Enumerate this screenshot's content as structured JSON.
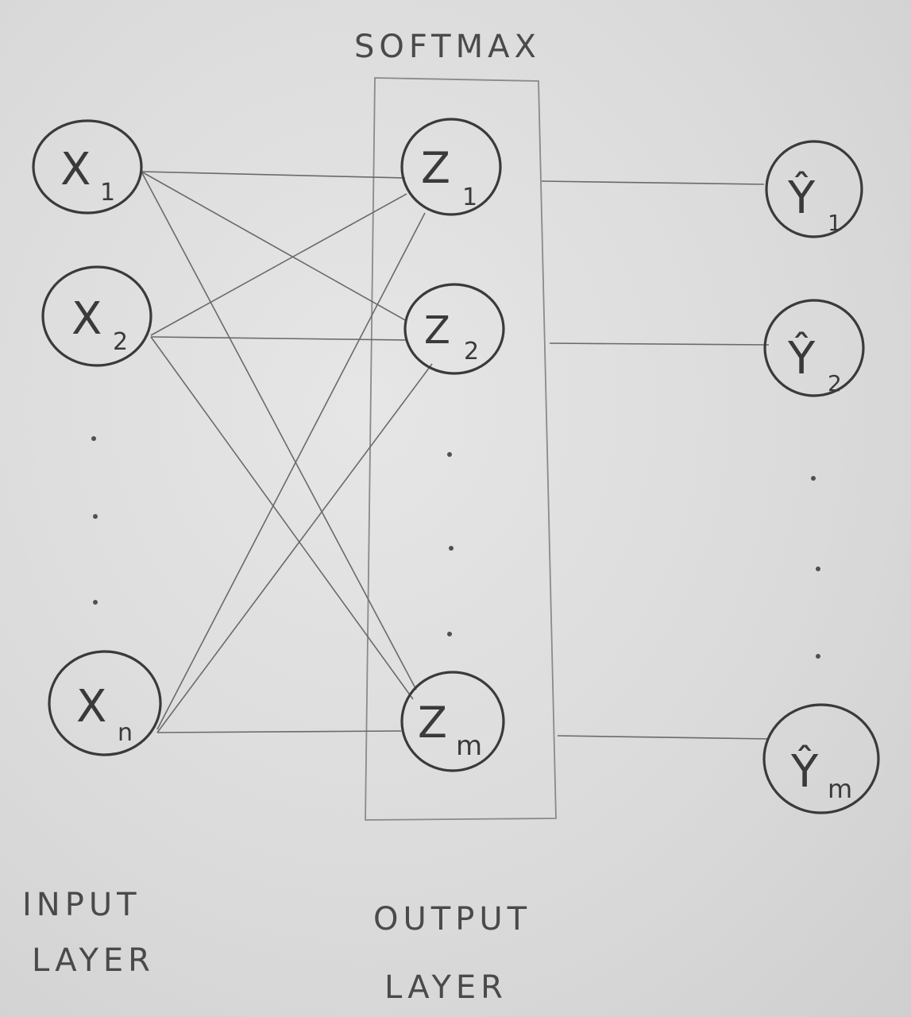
{
  "title": "SOFTMAX",
  "input_layer": {
    "label_line1": "INPUT",
    "label_line2": "LAYER",
    "nodes": [
      {
        "base": "X",
        "sub": "1"
      },
      {
        "base": "X",
        "sub": "2"
      },
      {
        "base": "X",
        "sub": "n"
      }
    ]
  },
  "output_layer": {
    "label_line1": "OUTPUT",
    "label_line2": "LAYER",
    "nodes": [
      {
        "base": "Z",
        "sub": "1"
      },
      {
        "base": "Z",
        "sub": "2"
      },
      {
        "base": "Z",
        "sub": "m"
      }
    ]
  },
  "prediction_nodes": [
    {
      "base": "Ŷ",
      "sub": "1"
    },
    {
      "base": "Ŷ",
      "sub": "2"
    },
    {
      "base": "Ŷ",
      "sub": "m"
    }
  ]
}
